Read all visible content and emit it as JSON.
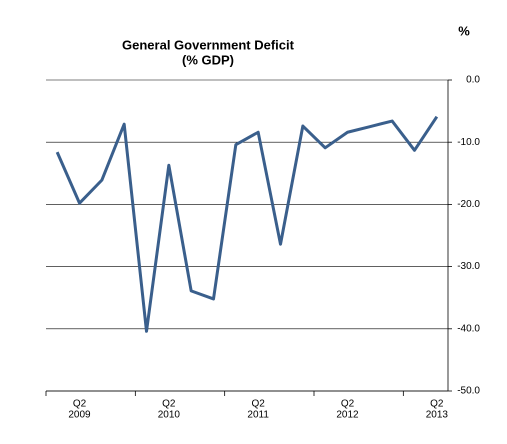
{
  "chart_data": {
    "type": "line",
    "title": "General Government Deficit",
    "subtitle": "(% GDP)",
    "y_label": "%",
    "categories": [
      null,
      [
        "Q2",
        "2009"
      ],
      null,
      null,
      null,
      [
        "Q2",
        "2010"
      ],
      null,
      null,
      null,
      [
        "Q2",
        "2011"
      ],
      null,
      null,
      null,
      [
        "Q2",
        "2012"
      ],
      null,
      null,
      null,
      [
        "Q2",
        "2013"
      ]
    ],
    "series": [
      {
        "name": "General Government Deficit",
        "color": "#3a5f8c",
        "values": [
          -11.6,
          -19.8,
          -16.1,
          -7.1,
          -40.4,
          -13.7,
          -33.9,
          -35.2,
          -10.4,
          -8.4,
          -26.4,
          -7.4,
          -10.9,
          -8.4,
          -7.5,
          -6.6,
          -11.3,
          -5.9
        ]
      }
    ],
    "ylim": [
      -50,
      0
    ],
    "yticks": [
      {
        "value": 0,
        "label": "0.0"
      },
      {
        "value": -10,
        "label": "-10.0"
      },
      {
        "value": -20,
        "label": "-20.0"
      },
      {
        "value": -30,
        "label": "-30.0"
      },
      {
        "value": -40,
        "label": "-40.0"
      },
      {
        "value": -50,
        "label": "-50.0"
      }
    ],
    "grid": true
  }
}
